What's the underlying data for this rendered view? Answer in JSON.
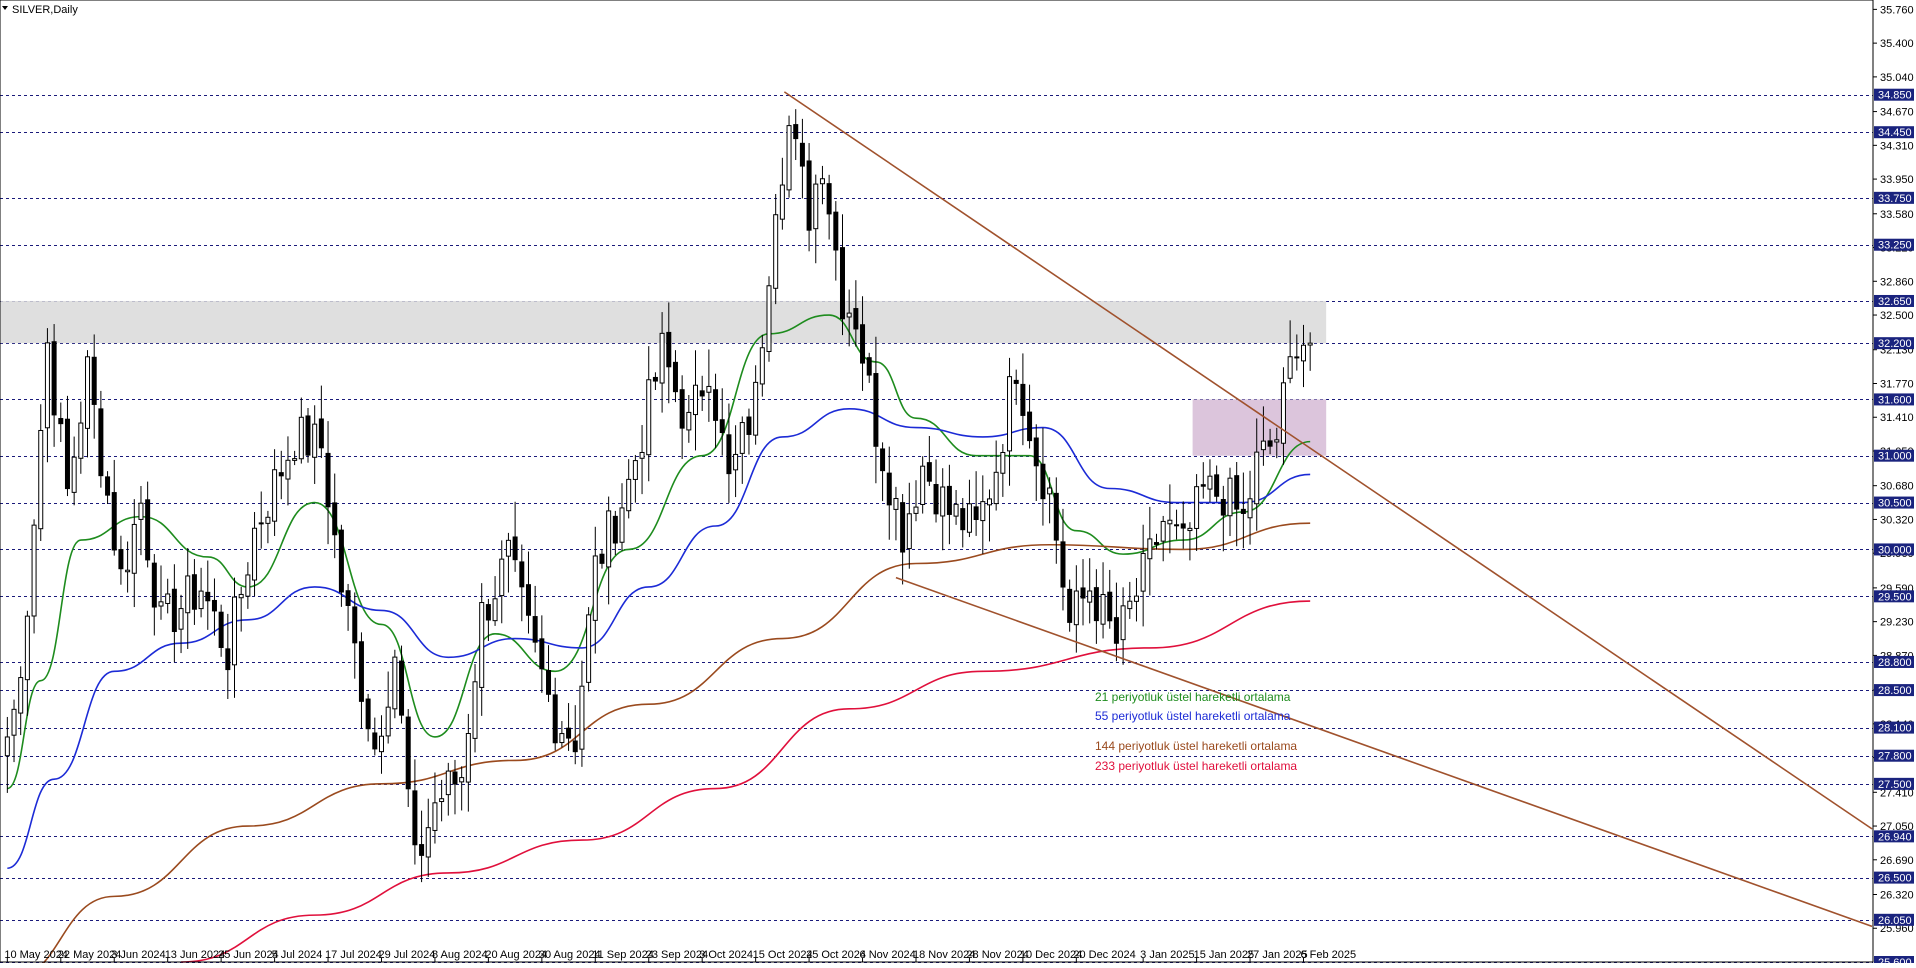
{
  "header": {
    "symbol_label": "SILVER,Daily"
  },
  "colors": {
    "background": "#ffffff",
    "bull_body": "#ffffff",
    "bear_body": "#000000",
    "candle_line": "#000000",
    "grid": "#1a1a7a",
    "level_tag_bg": "#1a237e",
    "level_tag_text": "#ffffff",
    "ema21": "#1e8c1e",
    "ema55": "#1c2bd6",
    "ema144": "#9a4a1e",
    "ema233": "#e0103c",
    "trendline": "#a0522d",
    "resistance_zone": "#d9d9d9",
    "support_zone": "#d8bfd8"
  },
  "legend": {
    "ema21": "21 periyotluk üstel hareketli ortalama",
    "ema55": "55 periyotluk üstel hareketli ortalama",
    "ema144": "144 periyotluk üstel hareketli ortalama",
    "ema233": "233 periyotluk üstel hareketli ortalama"
  },
  "chart_data": {
    "type": "candlestick",
    "symbol": "SILVER",
    "timeframe": "Daily",
    "ylim": [
      25.6,
      35.86
    ],
    "y_ticks": [
      "35.760",
      "35.400",
      "35.040",
      "34.670",
      "34.310",
      "33.950",
      "33.580",
      "33.220",
      "32.860",
      "32.500",
      "32.130",
      "31.770",
      "31.410",
      "31.050",
      "30.680",
      "30.320",
      "29.960",
      "29.590",
      "29.230",
      "28.870",
      "28.500",
      "28.140",
      "27.780",
      "27.410",
      "27.050",
      "26.690",
      "26.320",
      "25.960"
    ],
    "level_lines": [
      "34.850",
      "34.450",
      "33.750",
      "33.250",
      "32.650",
      "32.200",
      "31.600",
      "31.000",
      "30.500",
      "30.000",
      "29.500",
      "28.800",
      "28.500",
      "28.100",
      "27.800",
      "27.500",
      "26.940",
      "26.500",
      "26.050",
      "25.600"
    ],
    "x_tick_labels": [
      "10 May 2024",
      "22 May 2024",
      "3 Jun 2024",
      "13 Jun 2024",
      "25 Jun 2024",
      "5 Jul 2024",
      "17 Jul 2024",
      "29 Jul 2024",
      "8 Aug 2024",
      "20 Aug 2024",
      "30 Aug 2024",
      "11 Sep 2024",
      "23 Sep 2024",
      "3 Oct 2024",
      "15 Oct 2024",
      "25 Oct 2024",
      "6 Nov 2024",
      "18 Nov 2024",
      "28 Nov 2024",
      "10 Dec 2024",
      "20 Dec 2024",
      "3 Jan 2025",
      "15 Jan 2025",
      "27 Jan 2025",
      "6 Feb 2025"
    ],
    "anchors": [
      {
        "date": "2024-05-10",
        "price": 28.0
      },
      {
        "date": "2024-05-14",
        "price": 28.6
      },
      {
        "date": "2024-05-17",
        "price": 31.3
      },
      {
        "date": "2024-05-20",
        "price": 32.2
      },
      {
        "date": "2024-05-23",
        "price": 30.6
      },
      {
        "date": "2024-05-28",
        "price": 31.9
      },
      {
        "date": "2024-06-04",
        "price": 29.7
      },
      {
        "date": "2024-06-07",
        "price": 30.5
      },
      {
        "date": "2024-06-12",
        "price": 29.2
      },
      {
        "date": "2024-06-20",
        "price": 29.6
      },
      {
        "date": "2024-06-26",
        "price": 28.9
      },
      {
        "date": "2024-07-02",
        "price": 30.2
      },
      {
        "date": "2024-07-10",
        "price": 31.2
      },
      {
        "date": "2024-07-16",
        "price": 31.1
      },
      {
        "date": "2024-07-19",
        "price": 29.6
      },
      {
        "date": "2024-07-26",
        "price": 27.9
      },
      {
        "date": "2024-07-31",
        "price": 28.9
      },
      {
        "date": "2024-08-05",
        "price": 26.6
      },
      {
        "date": "2024-08-08",
        "price": 27.3
      },
      {
        "date": "2024-08-14",
        "price": 27.6
      },
      {
        "date": "2024-08-19",
        "price": 29.3
      },
      {
        "date": "2024-08-23",
        "price": 29.9
      },
      {
        "date": "2024-08-28",
        "price": 29.1
      },
      {
        "date": "2024-09-03",
        "price": 28.2
      },
      {
        "date": "2024-09-06",
        "price": 28.0
      },
      {
        "date": "2024-09-11",
        "price": 29.8
      },
      {
        "date": "2024-09-18",
        "price": 30.7
      },
      {
        "date": "2024-09-25",
        "price": 32.1
      },
      {
        "date": "2024-10-01",
        "price": 31.3
      },
      {
        "date": "2024-10-04",
        "price": 32.0
      },
      {
        "date": "2024-10-09",
        "price": 30.7
      },
      {
        "date": "2024-10-15",
        "price": 31.6
      },
      {
        "date": "2024-10-18",
        "price": 33.8
      },
      {
        "date": "2024-10-22",
        "price": 34.5
      },
      {
        "date": "2024-10-25",
        "price": 33.6
      },
      {
        "date": "2024-10-29",
        "price": 34.2
      },
      {
        "date": "2024-11-01",
        "price": 32.7
      },
      {
        "date": "2024-11-05",
        "price": 32.5
      },
      {
        "date": "2024-11-08",
        "price": 31.3
      },
      {
        "date": "2024-11-14",
        "price": 30.2
      },
      {
        "date": "2024-11-19",
        "price": 30.9
      },
      {
        "date": "2024-11-25",
        "price": 30.4
      },
      {
        "date": "2024-11-29",
        "price": 30.2
      },
      {
        "date": "2024-12-04",
        "price": 30.9
      },
      {
        "date": "2024-12-09",
        "price": 32.0
      },
      {
        "date": "2024-12-12",
        "price": 31.0
      },
      {
        "date": "2024-12-16",
        "price": 30.6
      },
      {
        "date": "2024-12-19",
        "price": 29.2
      },
      {
        "date": "2024-12-24",
        "price": 29.6
      },
      {
        "date": "2024-12-30",
        "price": 29.0
      },
      {
        "date": "2025-01-03",
        "price": 29.7
      },
      {
        "date": "2025-01-08",
        "price": 30.3
      },
      {
        "date": "2025-01-13",
        "price": 30.0
      },
      {
        "date": "2025-01-16",
        "price": 30.6
      },
      {
        "date": "2025-01-21",
        "price": 30.6
      },
      {
        "date": "2025-01-24",
        "price": 30.3
      },
      {
        "date": "2025-01-28",
        "price": 30.9
      },
      {
        "date": "2025-01-31",
        "price": 31.2
      },
      {
        "date": "2025-02-05",
        "price": 32.3
      },
      {
        "date": "2025-02-07",
        "price": 32.2
      }
    ],
    "ema21": [
      [
        "2024-05-10",
        27.45
      ],
      [
        "2024-05-17",
        28.6
      ],
      [
        "2024-05-27",
        30.1
      ],
      [
        "2024-06-07",
        30.35
      ],
      [
        "2024-06-21",
        29.92
      ],
      [
        "2024-07-01",
        29.6
      ],
      [
        "2024-07-15",
        30.5
      ],
      [
        "2024-07-29",
        29.2
      ],
      [
        "2024-08-08",
        28.0
      ],
      [
        "2024-08-21",
        29.1
      ],
      [
        "2024-09-03",
        28.7
      ],
      [
        "2024-09-18",
        30.0
      ],
      [
        "2024-10-03",
        31.0
      ],
      [
        "2024-10-17",
        32.3
      ],
      [
        "2024-10-30",
        32.5
      ],
      [
        "2024-11-08",
        32.0
      ],
      [
        "2024-11-18",
        31.4
      ],
      [
        "2024-11-29",
        31.0
      ],
      [
        "2024-12-11",
        31.0
      ],
      [
        "2024-12-20",
        30.2
      ],
      [
        "2024-12-31",
        29.95
      ],
      [
        "2025-01-13",
        30.1
      ],
      [
        "2025-01-24",
        30.4
      ],
      [
        "2025-02-07",
        31.15
      ]
    ],
    "ema55": [
      [
        "2024-05-10",
        26.6
      ],
      [
        "2024-05-21",
        27.55
      ],
      [
        "2024-06-03",
        28.7
      ],
      [
        "2024-06-17",
        29.0
      ],
      [
        "2024-07-01",
        29.25
      ],
      [
        "2024-07-15",
        29.6
      ],
      [
        "2024-07-29",
        29.35
      ],
      [
        "2024-08-12",
        28.85
      ],
      [
        "2024-08-26",
        29.05
      ],
      [
        "2024-09-09",
        28.95
      ],
      [
        "2024-09-23",
        29.6
      ],
      [
        "2024-10-07",
        30.25
      ],
      [
        "2024-10-21",
        31.2
      ],
      [
        "2024-11-04",
        31.5
      ],
      [
        "2024-11-18",
        31.3
      ],
      [
        "2024-12-02",
        31.2
      ],
      [
        "2024-12-13",
        31.3
      ],
      [
        "2024-12-27",
        30.65
      ],
      [
        "2025-01-10",
        30.5
      ],
      [
        "2025-01-24",
        30.5
      ],
      [
        "2025-02-07",
        30.8
      ]
    ],
    "ema144": [
      [
        "2024-05-10",
        25.4
      ],
      [
        "2024-06-03",
        26.3
      ],
      [
        "2024-07-01",
        27.05
      ],
      [
        "2024-07-29",
        27.5
      ],
      [
        "2024-08-26",
        27.75
      ],
      [
        "2024-09-23",
        28.35
      ],
      [
        "2024-10-21",
        29.05
      ],
      [
        "2024-11-18",
        29.85
      ],
      [
        "2024-12-16",
        30.05
      ],
      [
        "2025-01-13",
        30.0
      ],
      [
        "2025-02-07",
        30.28
      ]
    ],
    "ema233": [
      [
        "2024-06-17",
        25.6
      ],
      [
        "2024-07-15",
        26.1
      ],
      [
        "2024-08-12",
        26.55
      ],
      [
        "2024-09-09",
        26.9
      ],
      [
        "2024-10-07",
        27.45
      ],
      [
        "2024-11-04",
        28.3
      ],
      [
        "2024-12-02",
        28.7
      ],
      [
        "2025-01-06",
        28.95
      ],
      [
        "2025-02-07",
        29.45
      ]
    ]
  }
}
